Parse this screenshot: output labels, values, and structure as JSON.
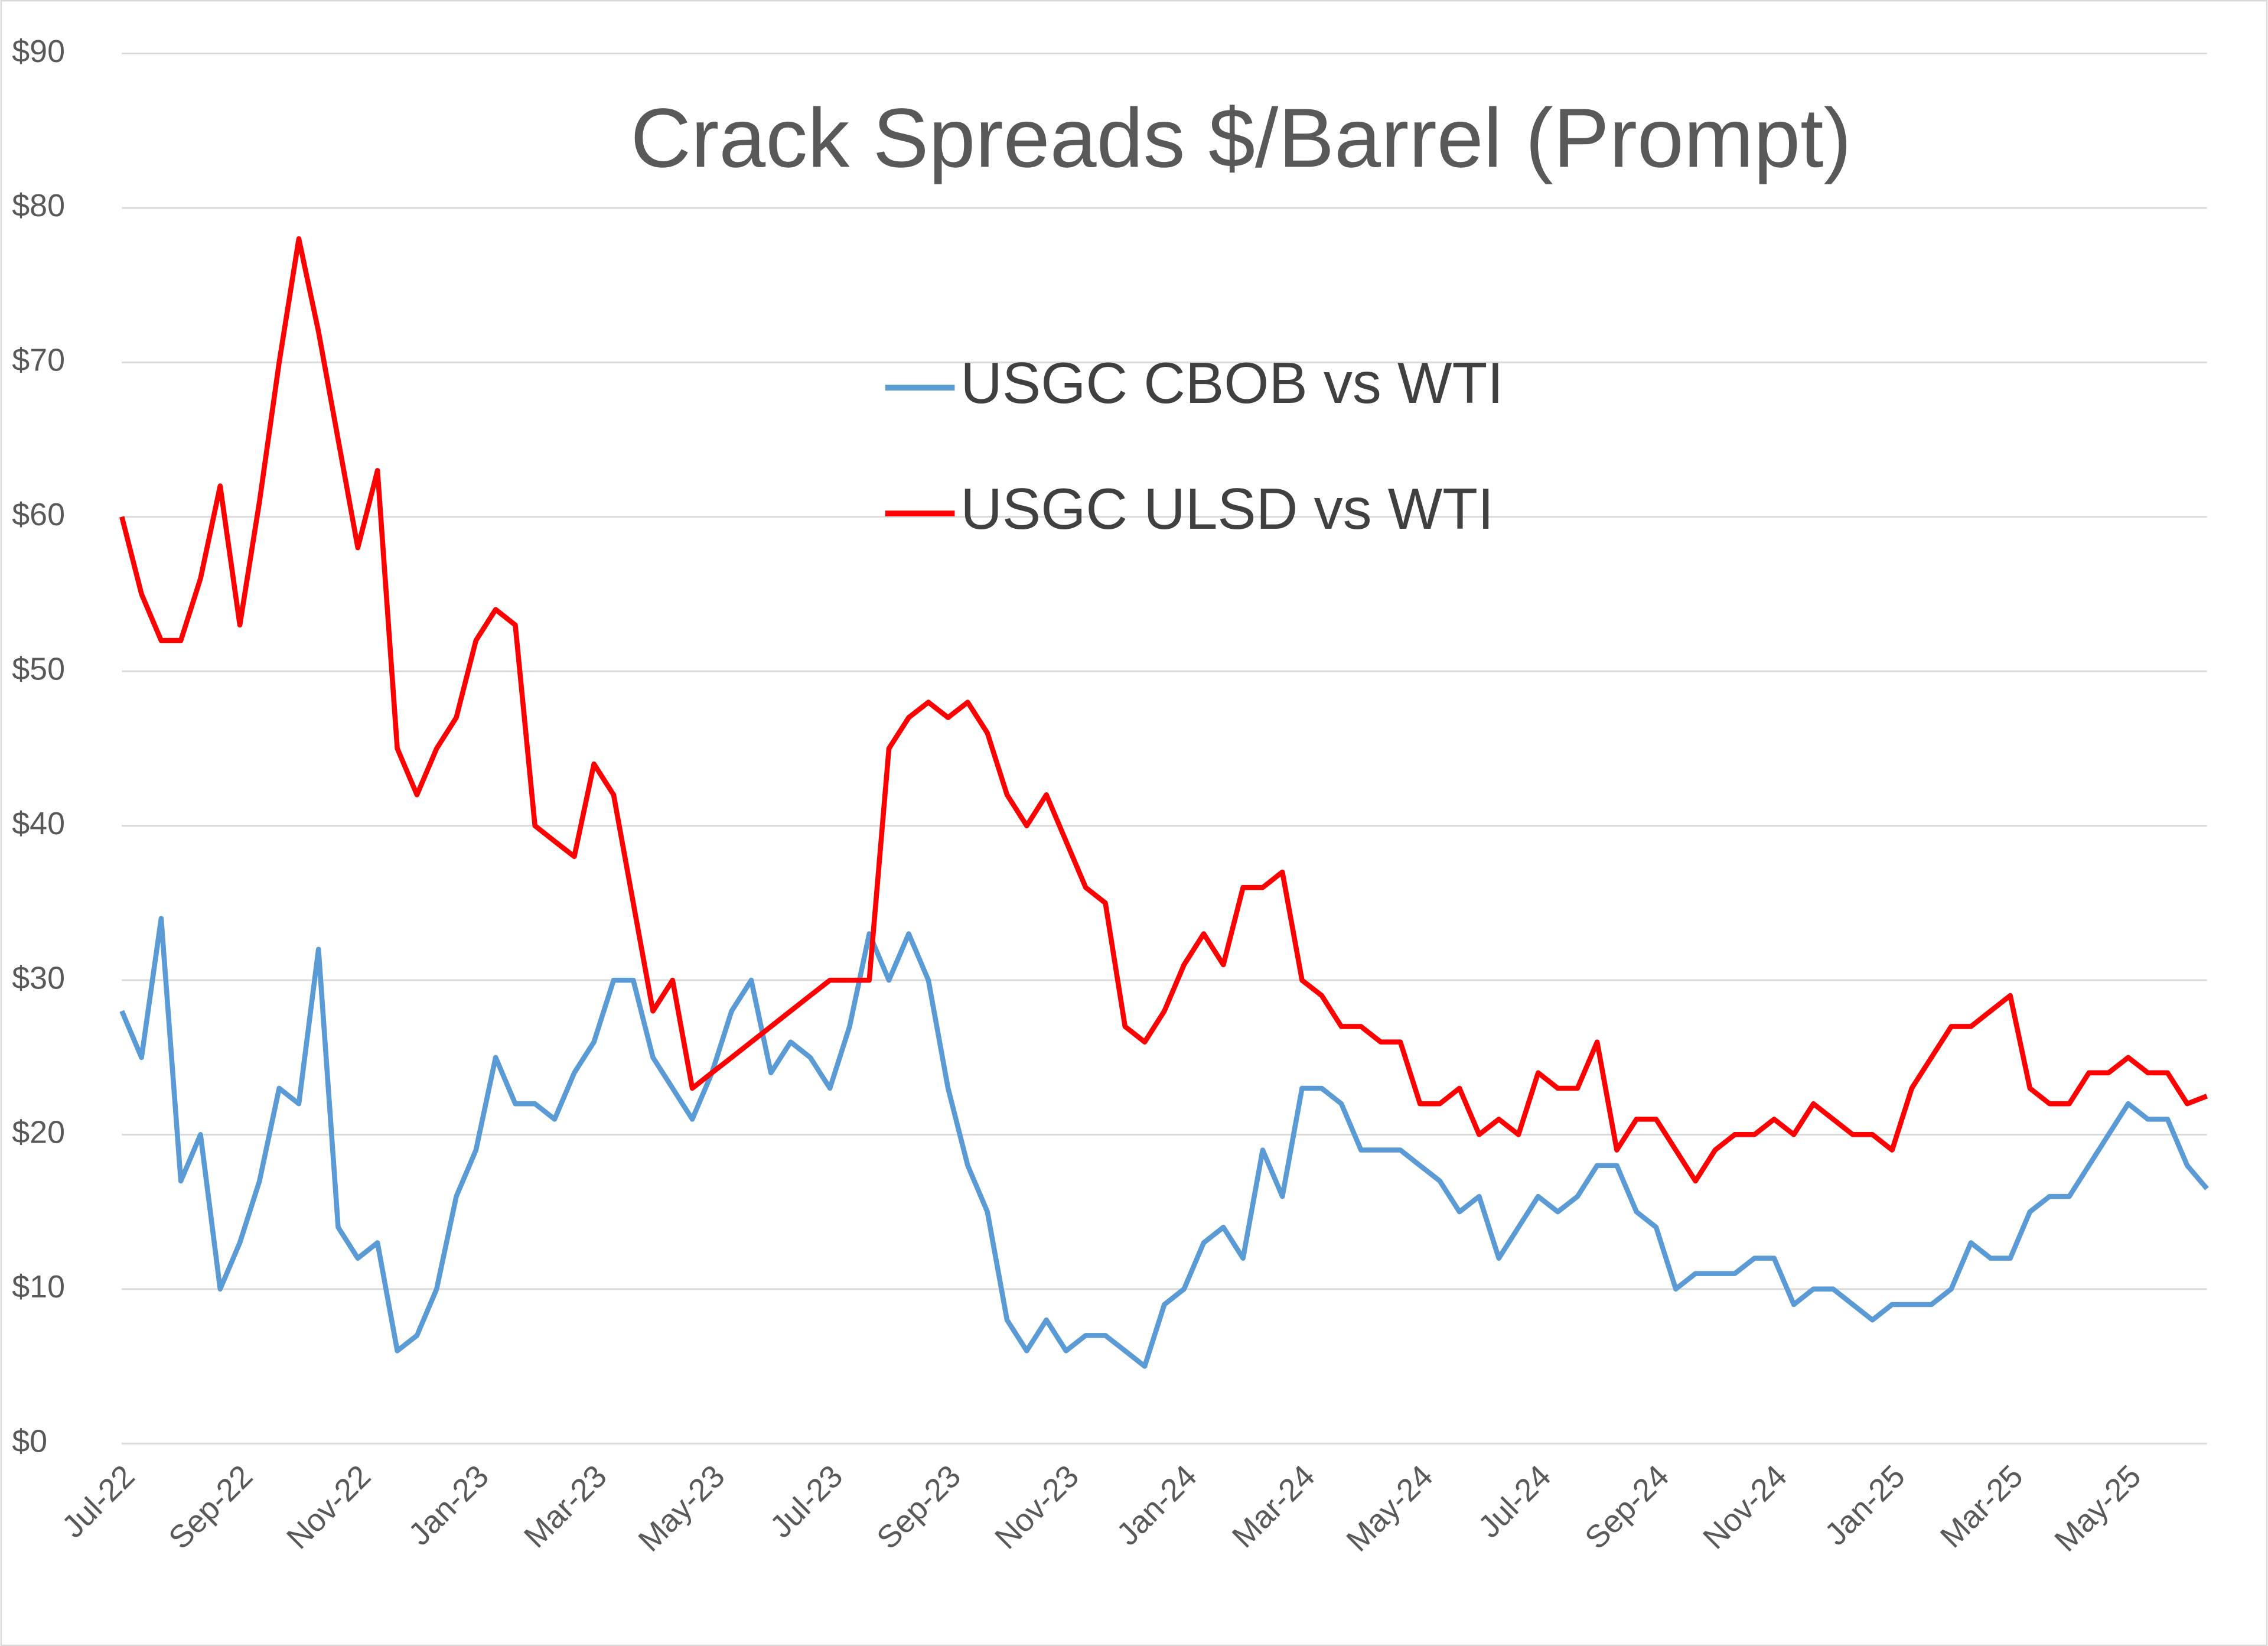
{
  "chart_data": {
    "type": "line",
    "title": "Crack Spreads $/Barrel (Prompt)",
    "categories": [
      "Jul-22",
      null,
      null,
      null,
      null,
      null,
      "Sep-22",
      null,
      null,
      null,
      null,
      null,
      "Nov-22",
      null,
      null,
      null,
      null,
      null,
      "Jan-23",
      null,
      null,
      null,
      null,
      null,
      "Mar-23",
      null,
      null,
      null,
      null,
      null,
      "May-23",
      null,
      null,
      null,
      null,
      null,
      "Jul-23",
      null,
      null,
      null,
      null,
      null,
      "Sep-23",
      null,
      null,
      null,
      null,
      null,
      "Nov-23",
      null,
      null,
      null,
      null,
      null,
      "Jan-24",
      null,
      null,
      null,
      null,
      null,
      "Mar-24",
      null,
      null,
      null,
      null,
      null,
      "May-24",
      null,
      null,
      null,
      null,
      null,
      "Jul-24",
      null,
      null,
      null,
      null,
      null,
      "Sep-24",
      null,
      null,
      null,
      null,
      null,
      "Nov-24",
      null,
      null,
      null,
      null,
      null,
      "Jan-25",
      null,
      null,
      null,
      null,
      null,
      "Mar-25",
      null,
      null,
      null,
      null,
      null,
      "May-25",
      null,
      null,
      null,
      null
    ],
    "series": [
      {
        "name": "USGC CBOB vs WTI",
        "color": "#5b9bd5",
        "values": [
          28,
          25,
          34,
          17,
          20,
          10,
          13,
          17,
          23,
          22,
          32,
          14,
          12,
          13,
          6,
          7,
          10,
          16,
          19,
          25,
          22,
          22,
          21,
          24,
          26,
          30,
          30,
          25,
          23,
          21,
          24,
          28,
          30,
          24,
          26,
          25,
          23,
          27,
          33,
          30,
          33,
          30,
          23,
          18,
          15,
          8,
          6,
          8,
          6,
          7,
          7,
          6,
          5,
          9,
          10,
          13,
          14,
          12,
          19,
          16,
          23,
          23,
          22,
          19,
          19,
          19,
          18,
          17,
          15,
          16,
          12,
          14,
          16,
          15,
          16,
          18,
          18,
          15,
          14,
          10,
          11,
          11,
          11,
          12,
          12,
          9,
          10,
          10,
          9,
          8,
          9,
          9,
          9,
          10,
          13,
          12,
          12,
          15,
          16,
          16,
          18,
          20,
          22,
          21,
          21,
          18,
          16.5
        ]
      },
      {
        "name": "USGC ULSD vs WTI",
        "color": "#ff0000",
        "values": [
          60,
          55,
          52,
          52,
          56,
          62,
          53,
          61,
          70,
          78,
          72,
          65,
          58,
          63,
          45,
          42,
          45,
          47,
          52,
          54,
          53,
          40,
          39,
          38,
          44,
          42,
          35,
          28,
          30,
          23,
          24,
          25,
          26,
          27,
          28,
          29,
          30,
          30,
          30,
          45,
          47,
          48,
          47,
          48,
          46,
          42,
          40,
          42,
          39,
          36,
          35,
          27,
          26,
          28,
          31,
          33,
          31,
          36,
          36,
          37,
          30,
          29,
          27,
          27,
          26,
          26,
          22,
          22,
          23,
          20,
          21,
          20,
          24,
          23,
          23,
          26,
          19,
          21,
          21,
          19,
          17,
          19,
          20,
          20,
          21,
          20,
          22,
          21,
          20,
          20,
          19,
          23,
          25,
          27,
          27,
          28,
          29,
          23,
          22,
          22,
          24,
          24,
          25,
          24,
          24,
          22,
          22.5
        ]
      }
    ],
    "ylim": [
      0,
      90
    ],
    "yticks": [
      {
        "value": 0,
        "label": "$0"
      },
      {
        "value": 10,
        "label": "$10"
      },
      {
        "value": 20,
        "label": "$20"
      },
      {
        "value": 30,
        "label": "$30"
      },
      {
        "value": 40,
        "label": "$40"
      },
      {
        "value": 50,
        "label": "$50"
      },
      {
        "value": 60,
        "label": "$60"
      },
      {
        "value": 70,
        "label": "$70"
      },
      {
        "value": 80,
        "label": "$80"
      },
      {
        "value": 90,
        "label": "$90"
      }
    ],
    "grid": true
  }
}
